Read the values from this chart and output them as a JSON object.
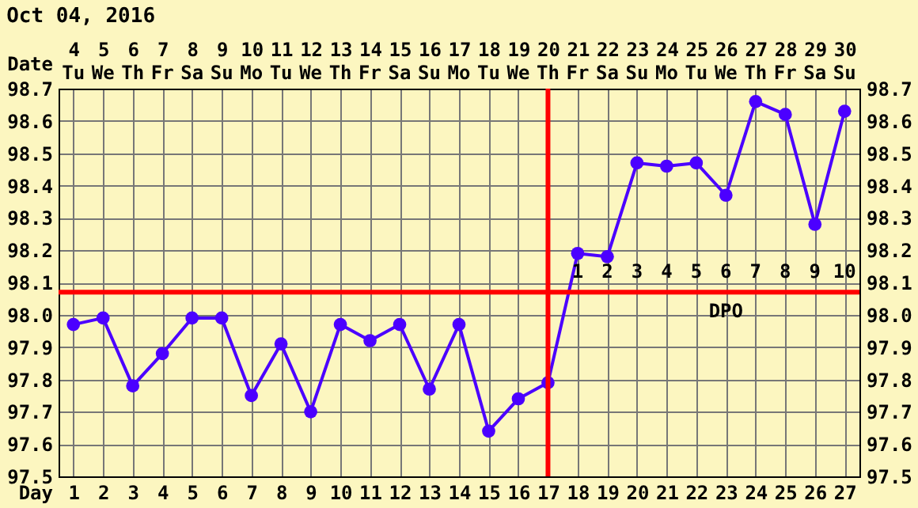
{
  "chart_data": {
    "type": "line",
    "title": "Oct 04, 2016",
    "xlabel": "Date",
    "x2label": "Day",
    "x": [
      4,
      5,
      6,
      7,
      8,
      9,
      10,
      11,
      12,
      13,
      14,
      15,
      16,
      17,
      18,
      19,
      20,
      21,
      22,
      23,
      24,
      25,
      26,
      27,
      28,
      29,
      30
    ],
    "series": [
      {
        "color": "#4b00ff",
        "values": [
          97.97,
          97.99,
          97.78,
          97.88,
          97.99,
          97.99,
          97.75,
          97.91,
          97.7,
          97.97,
          97.92,
          97.97,
          97.77,
          97.97,
          97.64,
          97.74,
          97.79,
          98.19,
          98.18,
          98.47,
          98.46,
          98.47,
          98.37,
          98.66,
          98.62,
          98.28,
          98.63
        ]
      }
    ],
    "xlim": [
      3.5,
      30.5
    ],
    "xticks": [
      4,
      5,
      6,
      7,
      8,
      9,
      10,
      11,
      12,
      13,
      14,
      15,
      16,
      17,
      18,
      19,
      20,
      21,
      22,
      23,
      24,
      25,
      26,
      27,
      28,
      29,
      30
    ],
    "x2lim": [
      0.5,
      27.5
    ],
    "x2ticks": [
      1,
      2,
      3,
      4,
      5,
      6,
      7,
      8,
      9,
      10,
      11,
      12,
      13,
      14,
      15,
      16,
      17,
      18,
      19,
      20,
      21,
      22,
      23,
      24,
      25,
      26,
      27
    ],
    "ylim": [
      97.5,
      98.7
    ],
    "yticks": [
      97.5,
      97.6,
      97.7,
      97.8,
      97.9,
      {
        "value": 98.0,
        "label": "98.0"
      },
      98.1,
      98.2,
      98.3,
      98.4,
      98.5,
      98.6,
      98.7
    ],
    "y2lim": [
      97.5,
      98.7
    ],
    "y2ticks": [
      97.5,
      97.6,
      97.7,
      97.8,
      97.9,
      {
        "value": 98.0,
        "label": "98.0"
      },
      98.1,
      98.2,
      98.3,
      98.4,
      98.5,
      98.6,
      98.7
    ],
    "ref_lines": [
      {
        "axis": "x",
        "value": 20,
        "color": "#ff0000"
      },
      {
        "axis": "y",
        "value": 98.07,
        "color": "#ff0000"
      }
    ],
    "annotations": [
      "Tu",
      "We",
      "Th",
      "Fr",
      "Sa",
      "Su",
      "Mo",
      "Tu",
      "We",
      "Th",
      "Fr",
      "Sa",
      "Su",
      "Mo",
      "Tu",
      "We",
      "Th",
      "Fr",
      "Sa",
      "Su",
      "Mo",
      "Tu",
      "We",
      "Th",
      "Fr",
      "Sa",
      "Su",
      "1",
      "2",
      "3",
      "4",
      "5",
      "6",
      "7",
      "8",
      "9",
      "10",
      "DPO"
    ],
    "grid": true,
    "marker": "circle",
    "line_style": "solid"
  }
}
